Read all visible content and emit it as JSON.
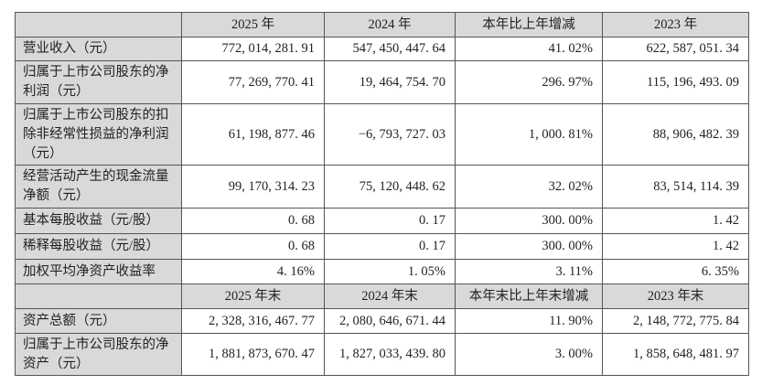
{
  "table": {
    "header1": [
      "",
      "2025 年",
      "2024 年",
      "本年比上年增减",
      "2023 年"
    ],
    "rows1": [
      {
        "label": "营业收入（元）",
        "values": [
          "772, 014, 281. 91",
          "547, 450, 447. 64",
          "41. 02%",
          "622, 587, 051. 34"
        ]
      },
      {
        "label": "归属于上市公司股东的净利润（元）",
        "values": [
          "77, 269, 770. 41",
          "19, 464, 754. 70",
          "296. 97%",
          "115, 196, 493. 09"
        ]
      },
      {
        "label": "归属于上市公司股东的扣除非经常性损益的净利润（元）",
        "values": [
          "61, 198, 877. 46",
          "−6, 793, 727. 03",
          "1, 000. 81%",
          "88, 906, 482. 39"
        ]
      },
      {
        "label": "经营活动产生的现金流量净额（元）",
        "values": [
          "99, 170, 314. 23",
          "75, 120, 448. 62",
          "32. 02%",
          "83, 514, 114. 39"
        ]
      },
      {
        "label": "基本每股收益（元/股）",
        "values": [
          "0. 68",
          "0. 17",
          "300. 00%",
          "1. 42"
        ]
      },
      {
        "label": "稀释每股收益（元/股）",
        "values": [
          "0. 68",
          "0. 17",
          "300. 00%",
          "1. 42"
        ]
      },
      {
        "label": "加权平均净资产收益率",
        "values": [
          "4. 16%",
          "1. 05%",
          "3. 11%",
          "6. 35%"
        ]
      }
    ],
    "header2": [
      "",
      "2025 年末",
      "2024 年末",
      "本年末比上年末增减",
      "2023 年末"
    ],
    "rows2": [
      {
        "label": "资产总额（元）",
        "values": [
          "2, 328, 316, 467. 77",
          "2, 080, 646, 671. 44",
          "11. 90%",
          "2, 148, 772, 775. 84"
        ]
      },
      {
        "label": "归属于上市公司股东的净资产（元）",
        "values": [
          "1, 881, 873, 670. 47",
          "1, 827, 033, 439. 80",
          "3. 00%",
          "1, 858, 648, 481. 97"
        ]
      }
    ]
  }
}
